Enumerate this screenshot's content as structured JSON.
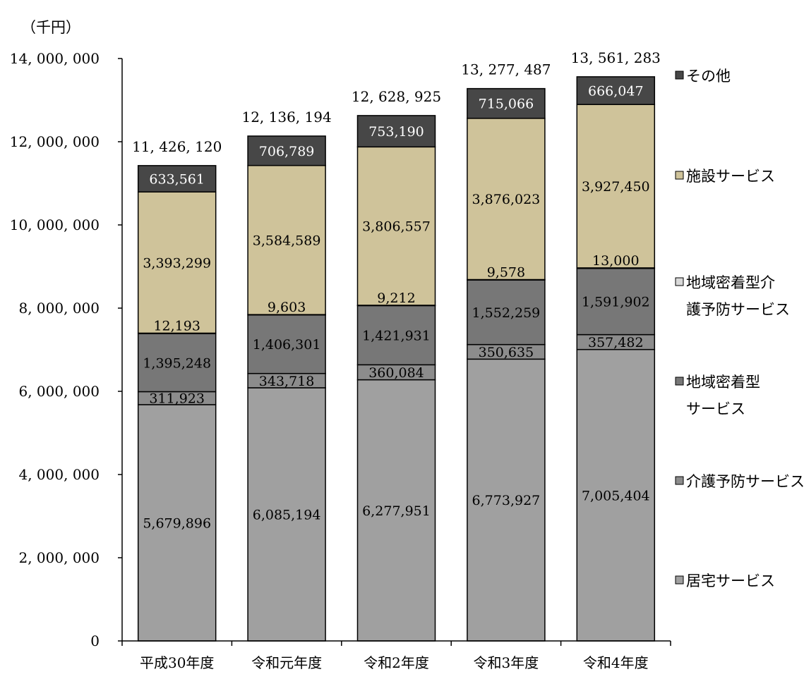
{
  "chart_data": {
    "type": "bar",
    "stacked": true,
    "unit_label": "（千円）",
    "categories": [
      "平成30年度",
      "令和元年度",
      "令和2年度",
      "令和3年度",
      "令和4年度"
    ],
    "ylim": [
      0,
      14000000
    ],
    "yticks": [
      0,
      2000000,
      4000000,
      6000000,
      8000000,
      10000000,
      12000000,
      14000000
    ],
    "ytick_labels": [
      "0",
      "2, 000, 000",
      "4, 000, 000",
      "6, 000, 000",
      "8, 000, 000",
      "10, 000, 000",
      "12, 000, 000",
      "14, 000, 000"
    ],
    "grid": false,
    "legend_position": "right",
    "totals": [
      11426120,
      12136194,
      12628925,
      13277487,
      13561283
    ],
    "total_labels": [
      "11, 426, 120",
      "12, 136, 194",
      "12, 628, 925",
      "13, 277, 487",
      "13, 561, 283"
    ],
    "series": [
      {
        "name": "居宅サービス",
        "color": "#a0a0a0",
        "values": [
          5679896,
          6085194,
          6277951,
          6773927,
          7005404
        ],
        "labels": [
          "5,679,896",
          "6,085,194",
          "6,277,951",
          "6,773,927",
          "7,005,404"
        ],
        "label_color": "#000000"
      },
      {
        "name": "介護予防サービス",
        "color": "#8c8c8c",
        "values": [
          311923,
          343718,
          360084,
          350635,
          357482
        ],
        "labels": [
          "311,923",
          "343,718",
          "360,084",
          "350,635",
          "357,482"
        ],
        "label_color": "#000000"
      },
      {
        "name": "地域密着型サービス",
        "legend_lines": [
          "地域密着型",
          "サービス"
        ],
        "color": "#777777",
        "values": [
          1395248,
          1406301,
          1421931,
          1552259,
          1591902
        ],
        "labels": [
          "1,395,248",
          "1,406,301",
          "1,421,931",
          "1,552,259",
          "1,591,902"
        ],
        "label_color": "#000000"
      },
      {
        "name": "地域密着型介護予防サービス",
        "legend_lines": [
          "地域密着型介",
          "護予防サービス"
        ],
        "color": "#d9d9d9",
        "values": [
          12193,
          9603,
          9212,
          9578,
          13000
        ],
        "labels": [
          "12,193",
          "9,603",
          "9,212",
          "9,578",
          "13,000"
        ],
        "label_color": "#000000"
      },
      {
        "name": "施設サービス",
        "color": "#cfc39a",
        "values": [
          3393299,
          3584589,
          3806557,
          3876023,
          3927450
        ],
        "labels": [
          "3,393,299",
          "3,584,589",
          "3,806,557",
          "3,876,023",
          "3,927,450"
        ],
        "label_color": "#000000"
      },
      {
        "name": "その他",
        "color": "#474747",
        "values": [
          633561,
          706789,
          753190,
          715066,
          666047
        ],
        "labels": [
          "633,561",
          "706,789",
          "753,190",
          "715,066",
          "666,047"
        ],
        "label_color": "#ffffff"
      }
    ]
  }
}
